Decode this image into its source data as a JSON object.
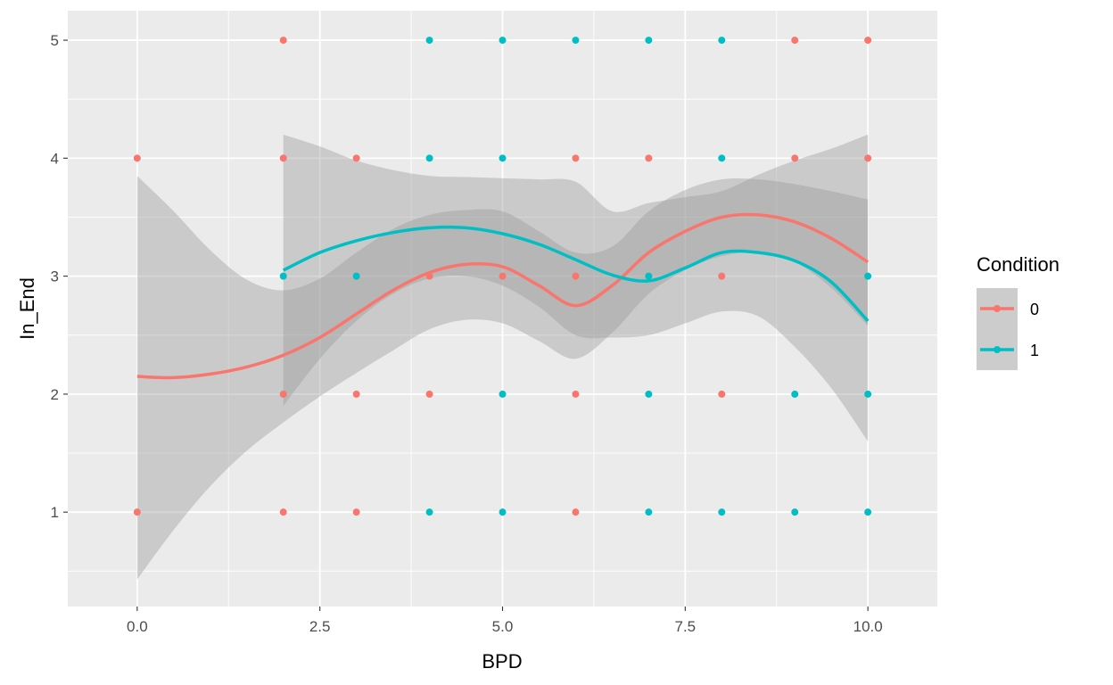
{
  "chart_data": {
    "type": "scatter",
    "xlabel": "BPD",
    "ylabel": "In_End",
    "xlim": [
      -0.95,
      10.95
    ],
    "ylim": [
      0.2,
      5.25
    ],
    "x_ticks": [
      0,
      2.5,
      5,
      7.5,
      10
    ],
    "x_tick_labels": [
      "0.0",
      "2.5",
      "5.0",
      "7.5",
      "10.0"
    ],
    "y_ticks": [
      1,
      2,
      3,
      4,
      5
    ],
    "y_tick_labels": [
      "1",
      "2",
      "3",
      "4",
      "5"
    ],
    "grid": true,
    "legend": {
      "title": "Condition",
      "position": "right"
    },
    "series": [
      {
        "name": "0",
        "color": "#F8766D",
        "points": [
          [
            0,
            4
          ],
          [
            0,
            1
          ],
          [
            2,
            5
          ],
          [
            2,
            4
          ],
          [
            2,
            2
          ],
          [
            2,
            1
          ],
          [
            3,
            4
          ],
          [
            3,
            2
          ],
          [
            3,
            1
          ],
          [
            4,
            3
          ],
          [
            4,
            2
          ],
          [
            5,
            3
          ],
          [
            6,
            4
          ],
          [
            6,
            3
          ],
          [
            6,
            2
          ],
          [
            6,
            1
          ],
          [
            7,
            4
          ],
          [
            8,
            3
          ],
          [
            8,
            2
          ],
          [
            9,
            5
          ],
          [
            9,
            4
          ],
          [
            10,
            5
          ],
          [
            10,
            4
          ]
        ],
        "smooth": [
          [
            0,
            2.15
          ],
          [
            0.5,
            2.14
          ],
          [
            1,
            2.17
          ],
          [
            1.5,
            2.23
          ],
          [
            2,
            2.33
          ],
          [
            2.5,
            2.48
          ],
          [
            3,
            2.68
          ],
          [
            3.5,
            2.88
          ],
          [
            4,
            3.03
          ],
          [
            4.5,
            3.1
          ],
          [
            5,
            3.08
          ],
          [
            5.5,
            2.92
          ],
          [
            6,
            2.75
          ],
          [
            6.5,
            2.92
          ],
          [
            7,
            3.2
          ],
          [
            7.5,
            3.38
          ],
          [
            8,
            3.5
          ],
          [
            8.5,
            3.52
          ],
          [
            9,
            3.46
          ],
          [
            9.5,
            3.32
          ],
          [
            10,
            3.12
          ]
        ],
        "ci_upper": [
          [
            0,
            3.85
          ],
          [
            0.5,
            3.55
          ],
          [
            1,
            3.22
          ],
          [
            1.5,
            2.97
          ],
          [
            2,
            2.88
          ],
          [
            2.5,
            2.98
          ],
          [
            3,
            3.2
          ],
          [
            3.5,
            3.4
          ],
          [
            4,
            3.52
          ],
          [
            4.5,
            3.56
          ],
          [
            5,
            3.55
          ],
          [
            5.5,
            3.38
          ],
          [
            6,
            3.2
          ],
          [
            6.5,
            3.25
          ],
          [
            7,
            3.55
          ],
          [
            7.5,
            3.73
          ],
          [
            8,
            3.82
          ],
          [
            8.5,
            3.82
          ],
          [
            9,
            3.78
          ],
          [
            9.5,
            3.72
          ],
          [
            10,
            3.65
          ]
        ],
        "ci_lower": [
          [
            0,
            0.43
          ],
          [
            0.5,
            0.85
          ],
          [
            1,
            1.22
          ],
          [
            1.5,
            1.52
          ],
          [
            2,
            1.76
          ],
          [
            2.5,
            1.98
          ],
          [
            3,
            2.18
          ],
          [
            3.5,
            2.37
          ],
          [
            4,
            2.55
          ],
          [
            4.5,
            2.63
          ],
          [
            5,
            2.6
          ],
          [
            5.5,
            2.45
          ],
          [
            6,
            2.3
          ],
          [
            6.5,
            2.52
          ],
          [
            7,
            2.85
          ],
          [
            7.5,
            3.05
          ],
          [
            8,
            3.17
          ],
          [
            8.5,
            3.2
          ],
          [
            9,
            3.12
          ],
          [
            9.5,
            2.9
          ],
          [
            10,
            2.58
          ]
        ]
      },
      {
        "name": "1",
        "color": "#00BFC4",
        "points": [
          [
            2,
            3
          ],
          [
            3,
            3
          ],
          [
            4,
            5
          ],
          [
            4,
            4
          ],
          [
            4,
            1
          ],
          [
            5,
            5
          ],
          [
            5,
            4
          ],
          [
            5,
            2
          ],
          [
            5,
            1
          ],
          [
            6,
            5
          ],
          [
            7,
            5
          ],
          [
            7,
            3
          ],
          [
            7,
            2
          ],
          [
            7,
            1
          ],
          [
            8,
            5
          ],
          [
            8,
            4
          ],
          [
            8,
            1
          ],
          [
            9,
            2
          ],
          [
            9,
            1
          ],
          [
            10,
            3
          ],
          [
            10,
            2
          ],
          [
            10,
            1
          ]
        ],
        "smooth": [
          [
            2,
            3.05
          ],
          [
            2.5,
            3.2
          ],
          [
            3,
            3.3
          ],
          [
            3.5,
            3.37
          ],
          [
            4,
            3.41
          ],
          [
            4.5,
            3.41
          ],
          [
            5,
            3.36
          ],
          [
            5.5,
            3.27
          ],
          [
            6,
            3.14
          ],
          [
            6.5,
            3.01
          ],
          [
            7,
            2.96
          ],
          [
            7.5,
            3.07
          ],
          [
            8,
            3.2
          ],
          [
            8.5,
            3.2
          ],
          [
            9,
            3.13
          ],
          [
            9.5,
            2.95
          ],
          [
            10,
            2.62
          ]
        ],
        "ci_upper": [
          [
            2,
            4.2
          ],
          [
            2.5,
            4.1
          ],
          [
            3,
            3.98
          ],
          [
            3.5,
            3.9
          ],
          [
            4,
            3.85
          ],
          [
            4.5,
            3.84
          ],
          [
            5,
            3.83
          ],
          [
            5.5,
            3.82
          ],
          [
            6,
            3.8
          ],
          [
            6.5,
            3.55
          ],
          [
            7,
            3.62
          ],
          [
            7.5,
            3.67
          ],
          [
            8,
            3.72
          ],
          [
            8.5,
            3.86
          ],
          [
            9,
            3.98
          ],
          [
            9.5,
            4.08
          ],
          [
            10,
            4.2
          ]
        ],
        "ci_lower": [
          [
            2,
            1.9
          ],
          [
            2.5,
            2.3
          ],
          [
            3,
            2.62
          ],
          [
            3.5,
            2.85
          ],
          [
            4,
            2.98
          ],
          [
            4.5,
            3.0
          ],
          [
            5,
            2.92
          ],
          [
            5.5,
            2.74
          ],
          [
            6,
            2.5
          ],
          [
            6.5,
            2.48
          ],
          [
            7,
            2.5
          ],
          [
            7.5,
            2.6
          ],
          [
            8,
            2.7
          ],
          [
            8.5,
            2.66
          ],
          [
            9,
            2.4
          ],
          [
            9.5,
            2.05
          ],
          [
            10,
            1.6
          ]
        ]
      }
    ]
  }
}
